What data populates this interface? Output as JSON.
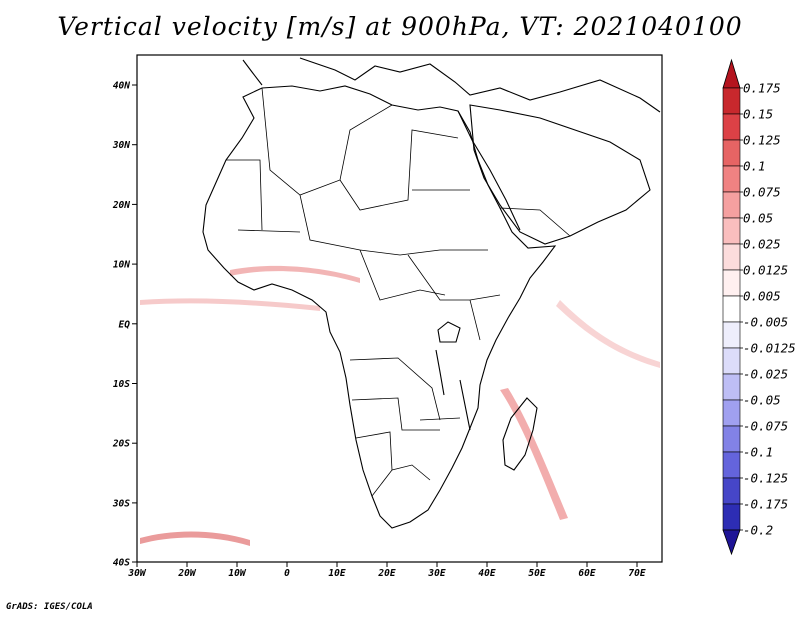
{
  "title": "Vertical velocity [m/s] at 900hPa, VT: 2021040100",
  "credit": "GrADS: IGES/COLA",
  "lat_labels": [
    "40N",
    "30N",
    "20N",
    "10N",
    "EQ",
    "10S",
    "20S",
    "30S",
    "40S"
  ],
  "lon_labels": [
    "30W",
    "20W",
    "10W",
    "0",
    "10E",
    "20E",
    "30E",
    "40E",
    "50E",
    "60E",
    "70E"
  ],
  "colorbar": {
    "labels": [
      "0.175",
      "0.15",
      "0.125",
      "0.1",
      "0.075",
      "0.05",
      "0.025",
      "0.0125",
      "0.005",
      "-0.005",
      "-0.0125",
      "-0.025",
      "-0.05",
      "-0.075",
      "-0.1",
      "-0.125",
      "-0.175",
      "-0.2"
    ],
    "colors": [
      "#b4141e",
      "#c8282d",
      "#dc4146",
      "#e66464",
      "#f08282",
      "#f5a0a0",
      "#fabebe",
      "#fcdcdc",
      "#fff0f0",
      "#ffffff",
      "#eeeefc",
      "#dcdcfa",
      "#bebef5",
      "#a0a0f0",
      "#8282e6",
      "#6464dc",
      "#4646c8",
      "#2d2db4",
      "#1e1496"
    ]
  }
}
